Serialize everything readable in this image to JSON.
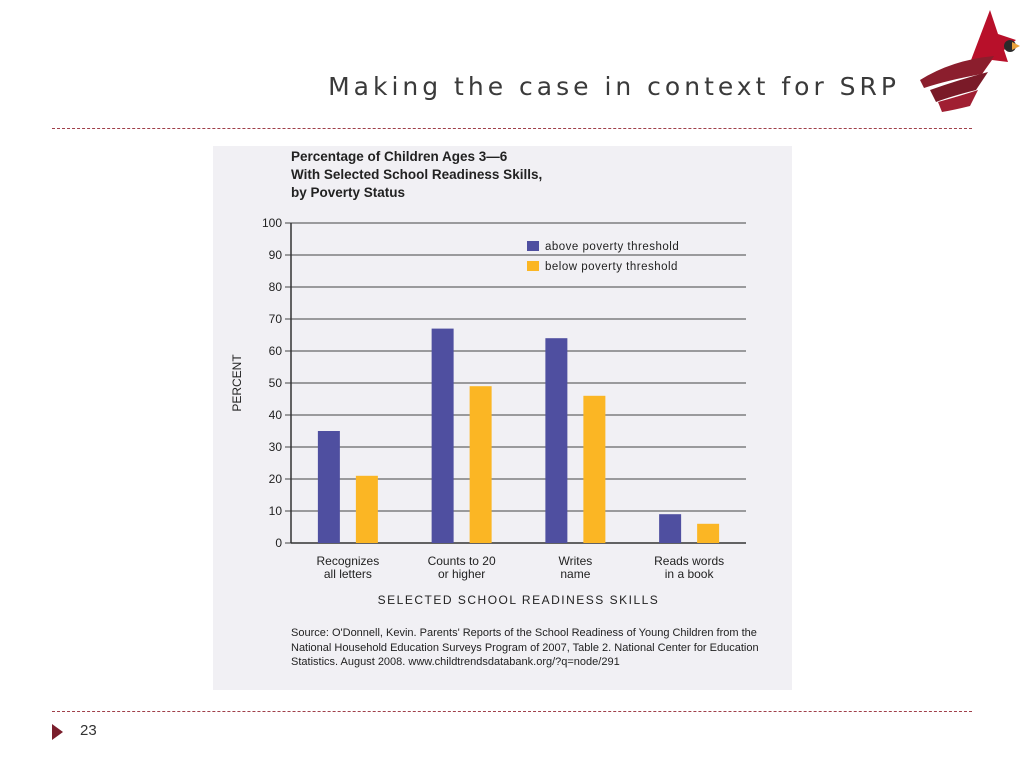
{
  "slide": {
    "title": "Making the case in context for SRP",
    "page_number": "23",
    "accent_color": "#8b1e2d",
    "logo_icon": "cardinal-bird-icon"
  },
  "chart_data": {
    "type": "bar",
    "title": "Percentage of Children Ages 3—6\nWith Selected School Readiness Skills,\nby Poverty Status",
    "xlabel": "SELECTED SCHOOL READINESS SKILLS",
    "ylabel": "PERCENT",
    "ylim": [
      0,
      100
    ],
    "yticks": [
      0,
      10,
      20,
      30,
      40,
      50,
      60,
      70,
      80,
      90,
      100
    ],
    "grid": true,
    "legend_position": "top-right",
    "categories": [
      [
        "Recognizes",
        "all letters"
      ],
      [
        "Counts to 20",
        "or higher"
      ],
      [
        "Writes",
        "name"
      ],
      [
        "Reads words",
        "in a book"
      ]
    ],
    "series": [
      {
        "name": "above poverty threshold",
        "color": "#4f4fa0",
        "values": [
          35,
          67,
          64,
          9
        ]
      },
      {
        "name": "below poverty threshold",
        "color": "#fbb624",
        "values": [
          21,
          49,
          46,
          6
        ]
      }
    ],
    "source": "Source: O'Donnell, Kevin. Parents' Reports of the School Readiness of Young Children from the National Household Education Surveys Program of 2007, Table 2. National Center for Education Statistics. August 2008. www.childtrendsdatabank.org/?q=node/291"
  }
}
